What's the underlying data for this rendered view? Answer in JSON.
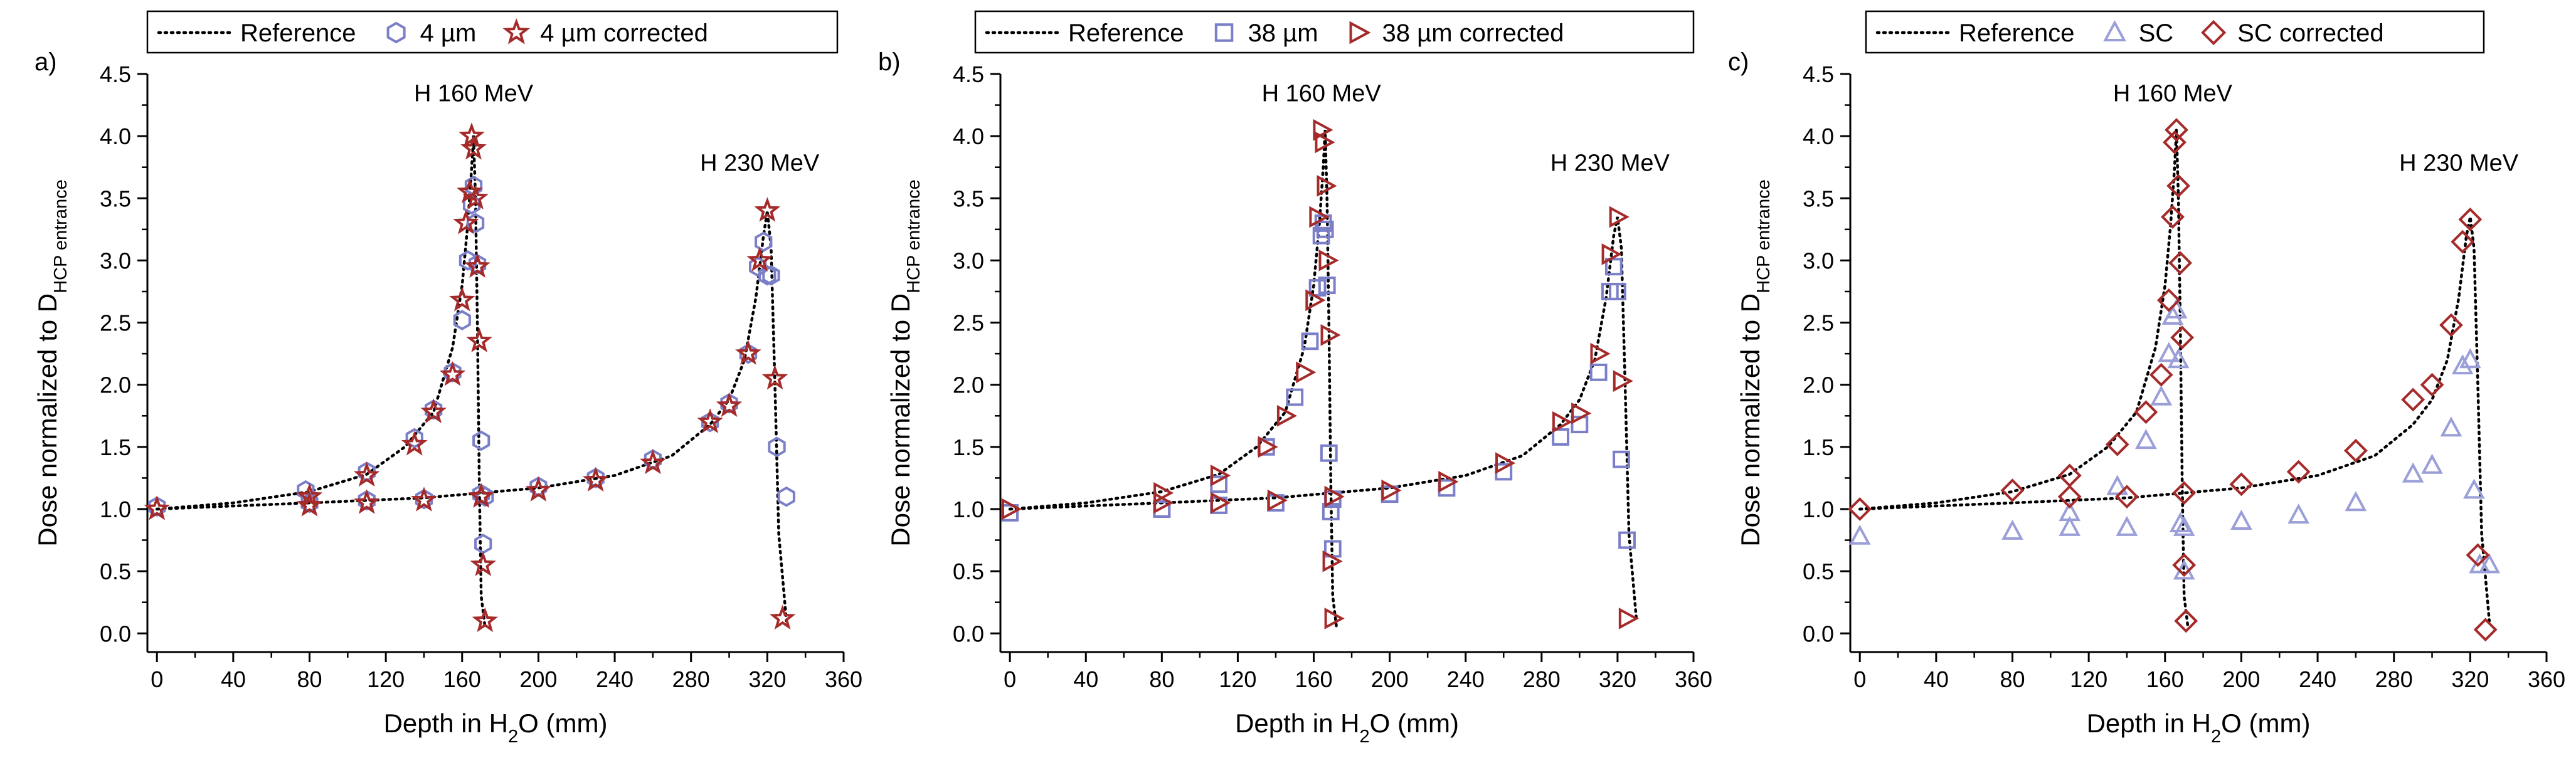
{
  "chart_data": [
    {
      "type": "scatter",
      "panel_label": "a)",
      "ylabel": "Dose normalized to D",
      "ylabel_sub": "HCP entrance",
      "xlabel_pre": "Depth in H",
      "xlabel_sub": "2",
      "xlabel_post": "O (mm)",
      "xlim": [
        -5,
        360
      ],
      "ylim": [
        -0.15,
        4.5
      ],
      "xticks": [
        0,
        40,
        80,
        120,
        160,
        200,
        240,
        280,
        320,
        360
      ],
      "yticks": [
        0.0,
        0.5,
        1.0,
        1.5,
        2.0,
        2.5,
        3.0,
        3.5,
        4.0,
        4.5
      ],
      "annotations": [
        {
          "text": "H 160 MeV",
          "x": 166,
          "y": 4.28
        },
        {
          "text": "H 230 MeV",
          "x": 316,
          "y": 3.72
        }
      ],
      "legend": [
        {
          "label": "Reference",
          "style": "dotted-line"
        },
        {
          "label": "4 µm",
          "marker": "hexagon",
          "color": "#7b7fc8"
        },
        {
          "label": "4 µm corrected",
          "marker": "star",
          "color": "#a52a2a"
        }
      ],
      "series": [
        {
          "name": "Reference",
          "style": "dotted",
          "color": "#000000",
          "x": [
            0,
            40,
            80,
            110,
            130,
            145,
            155,
            160,
            163,
            165,
            166,
            167,
            168,
            169,
            170,
            172
          ],
          "y": [
            1.0,
            1.05,
            1.14,
            1.28,
            1.5,
            1.78,
            2.3,
            2.8,
            3.3,
            3.75,
            4.0,
            3.5,
            2.5,
            1.2,
            0.3,
            0.05
          ]
        },
        {
          "name": "Reference",
          "style": "dotted",
          "color": "#000000",
          "x": [
            0,
            80,
            140,
            200,
            240,
            270,
            290,
            300,
            308,
            314,
            318,
            320,
            322,
            324,
            326,
            330
          ],
          "y": [
            1.0,
            1.05,
            1.09,
            1.17,
            1.27,
            1.43,
            1.68,
            1.88,
            2.2,
            2.7,
            3.2,
            3.4,
            3.1,
            2.0,
            0.8,
            0.1
          ]
        },
        {
          "name": "4 µm",
          "marker": "hexagon",
          "color": "#7b7fc8",
          "x": [
            0,
            78,
            110,
            135,
            145,
            155,
            160,
            163,
            165,
            166,
            167,
            168,
            170,
            171,
            172,
            80,
            110,
            140,
            170,
            200,
            230,
            260,
            290,
            300,
            310,
            315,
            318,
            320,
            322,
            325,
            330
          ],
          "y": [
            1.02,
            1.15,
            1.3,
            1.57,
            1.8,
            2.1,
            2.52,
            3.0,
            3.45,
            3.6,
            3.3,
            2.97,
            1.55,
            0.72,
            1.1,
            1.05,
            1.07,
            1.08,
            1.12,
            1.18,
            1.25,
            1.4,
            1.7,
            1.85,
            2.25,
            2.95,
            3.15,
            2.88,
            2.88,
            1.5,
            1.1
          ]
        },
        {
          "name": "4 µm corrected",
          "marker": "star",
          "color": "#a52a2a",
          "x": [
            0,
            80,
            110,
            135,
            145,
            155,
            160,
            162,
            164,
            165,
            166,
            167,
            168,
            169,
            170,
            171,
            172,
            80,
            110,
            140,
            170,
            200,
            230,
            260,
            290,
            300,
            310,
            316,
            320,
            324,
            328
          ],
          "y": [
            1.0,
            1.1,
            1.27,
            1.52,
            1.78,
            2.08,
            2.68,
            3.3,
            3.55,
            4.0,
            3.9,
            3.5,
            2.95,
            2.35,
            1.1,
            0.55,
            0.1,
            1.03,
            1.05,
            1.07,
            1.1,
            1.15,
            1.23,
            1.37,
            1.7,
            1.83,
            2.25,
            3.0,
            3.4,
            2.05,
            0.12
          ]
        }
      ]
    },
    {
      "type": "scatter",
      "panel_label": "b)",
      "ylabel": "Dose normalized to D",
      "ylabel_sub": "HCP entrance",
      "xlabel_pre": "Depth in H",
      "xlabel_sub": "2",
      "xlabel_post": "O (mm)",
      "xlim": [
        -5,
        360
      ],
      "ylim": [
        -0.15,
        4.5
      ],
      "xticks": [
        0,
        40,
        80,
        120,
        160,
        200,
        240,
        280,
        320,
        360
      ],
      "yticks": [
        0.0,
        0.5,
        1.0,
        1.5,
        2.0,
        2.5,
        3.0,
        3.5,
        4.0,
        4.5
      ],
      "annotations": [
        {
          "text": "H 160 MeV",
          "x": 164,
          "y": 4.28
        },
        {
          "text": "H 230 MeV",
          "x": 316,
          "y": 3.72
        }
      ],
      "legend": [
        {
          "label": "Reference",
          "style": "dotted-line"
        },
        {
          "label": "38 µm",
          "marker": "square",
          "color": "#7b7fc8"
        },
        {
          "label": "38 µm corrected",
          "marker": "triangle-right",
          "color": "#a52a2a"
        }
      ],
      "series": [
        {
          "name": "Reference",
          "style": "dotted",
          "color": "#000000",
          "x": [
            0,
            40,
            80,
            110,
            130,
            145,
            155,
            160,
            163,
            165,
            166,
            167,
            168,
            169,
            170,
            172
          ],
          "y": [
            1.0,
            1.05,
            1.14,
            1.28,
            1.5,
            1.78,
            2.3,
            2.8,
            3.3,
            3.75,
            4.05,
            3.5,
            2.5,
            1.2,
            0.3,
            0.05
          ]
        },
        {
          "name": "Reference",
          "style": "dotted",
          "color": "#000000",
          "x": [
            0,
            80,
            140,
            200,
            240,
            270,
            290,
            300,
            308,
            314,
            318,
            320,
            322,
            324,
            326,
            330
          ],
          "y": [
            1.0,
            1.05,
            1.09,
            1.17,
            1.27,
            1.43,
            1.68,
            1.88,
            2.2,
            2.7,
            3.2,
            3.35,
            3.1,
            2.0,
            0.8,
            0.1
          ]
        },
        {
          "name": "38 µm",
          "marker": "square",
          "color": "#7b7fc8",
          "x": [
            0,
            80,
            110,
            135,
            150,
            158,
            162,
            164,
            165,
            166,
            167,
            168,
            169,
            170,
            80,
            110,
            140,
            170,
            200,
            230,
            260,
            290,
            300,
            310,
            316,
            318,
            320,
            322,
            325
          ],
          "y": [
            0.97,
            1.0,
            1.2,
            1.5,
            1.9,
            2.35,
            2.78,
            3.2,
            3.3,
            3.25,
            2.8,
            1.45,
            0.98,
            0.68,
            1.0,
            1.03,
            1.05,
            1.08,
            1.12,
            1.17,
            1.3,
            1.58,
            1.68,
            2.1,
            2.75,
            2.95,
            2.75,
            1.4,
            0.75
          ]
        },
        {
          "name": "38 µm corrected",
          "marker": "triangle-right",
          "color": "#a52a2a",
          "x": [
            0,
            80,
            110,
            135,
            145,
            155,
            160,
            162,
            164,
            165,
            166,
            167,
            168,
            169,
            170,
            80,
            110,
            140,
            170,
            200,
            230,
            260,
            290,
            300,
            310,
            316,
            320,
            322,
            325
          ],
          "y": [
            1.0,
            1.13,
            1.27,
            1.5,
            1.75,
            2.1,
            2.68,
            3.35,
            4.05,
            3.95,
            3.6,
            3.0,
            2.4,
            0.58,
            0.12,
            1.05,
            1.05,
            1.07,
            1.1,
            1.15,
            1.22,
            1.37,
            1.7,
            1.77,
            2.25,
            3.05,
            3.35,
            2.03,
            0.12
          ]
        }
      ]
    },
    {
      "type": "scatter",
      "panel_label": "c)",
      "ylabel": "Dose normalized to D",
      "ylabel_sub": "HCP entrance",
      "xlabel_pre": "Depth in H",
      "xlabel_sub": "2",
      "xlabel_post": "O (mm)",
      "xlim": [
        -5,
        360
      ],
      "ylim": [
        -0.15,
        4.5
      ],
      "xticks": [
        0,
        40,
        80,
        120,
        160,
        200,
        240,
        280,
        320,
        360
      ],
      "yticks": [
        0.0,
        0.5,
        1.0,
        1.5,
        2.0,
        2.5,
        3.0,
        3.5,
        4.0,
        4.5
      ],
      "annotations": [
        {
          "text": "H 160 MeV",
          "x": 164,
          "y": 4.28
        },
        {
          "text": "H 230 MeV",
          "x": 314,
          "y": 3.72
        }
      ],
      "legend": [
        {
          "label": "Reference",
          "style": "dotted-line"
        },
        {
          "label": "SC",
          "marker": "triangle-up",
          "color": "#9b9fd8"
        },
        {
          "label": "SC corrected",
          "marker": "diamond",
          "color": "#a52a2a"
        }
      ],
      "series": [
        {
          "name": "Reference",
          "style": "dotted",
          "color": "#000000",
          "x": [
            0,
            40,
            80,
            110,
            130,
            145,
            155,
            160,
            163,
            165,
            166,
            167,
            168,
            169,
            170,
            172
          ],
          "y": [
            1.0,
            1.05,
            1.14,
            1.28,
            1.5,
            1.78,
            2.3,
            2.8,
            3.3,
            3.75,
            4.05,
            3.5,
            2.5,
            1.2,
            0.3,
            0.05
          ]
        },
        {
          "name": "Reference",
          "style": "dotted",
          "color": "#000000",
          "x": [
            0,
            80,
            140,
            200,
            240,
            270,
            290,
            300,
            308,
            314,
            318,
            320,
            322,
            324,
            326,
            330
          ],
          "y": [
            1.0,
            1.05,
            1.09,
            1.17,
            1.27,
            1.43,
            1.68,
            1.88,
            2.2,
            2.7,
            3.2,
            3.35,
            3.1,
            2.0,
            0.8,
            0.1
          ]
        },
        {
          "name": "SC",
          "marker": "triangle-up",
          "color": "#9b9fd8",
          "x": [
            0,
            80,
            110,
            135,
            150,
            158,
            162,
            164,
            166,
            167,
            168,
            170,
            110,
            140,
            170,
            200,
            230,
            260,
            290,
            300,
            310,
            316,
            320,
            322,
            325,
            330
          ],
          "y": [
            0.78,
            0.82,
            0.85,
            1.18,
            1.55,
            1.9,
            2.25,
            2.55,
            2.6,
            2.2,
            0.88,
            0.5,
            0.97,
            0.85,
            0.85,
            0.9,
            0.95,
            1.05,
            1.28,
            1.35,
            1.65,
            2.15,
            2.2,
            1.15,
            0.55,
            0.55
          ]
        },
        {
          "name": "SC corrected",
          "marker": "diamond",
          "color": "#a52a2a",
          "x": [
            0,
            80,
            110,
            135,
            150,
            158,
            162,
            164,
            165,
            166,
            167,
            168,
            169,
            170,
            171,
            110,
            140,
            170,
            200,
            230,
            260,
            290,
            300,
            310,
            316,
            320,
            324,
            328
          ],
          "y": [
            1.0,
            1.15,
            1.27,
            1.52,
            1.78,
            2.08,
            2.68,
            3.35,
            3.95,
            4.05,
            3.6,
            2.98,
            2.38,
            0.55,
            0.1,
            1.1,
            1.1,
            1.13,
            1.2,
            1.3,
            1.47,
            1.88,
            2.0,
            2.48,
            3.15,
            3.33,
            0.63,
            0.03
          ]
        }
      ]
    }
  ]
}
